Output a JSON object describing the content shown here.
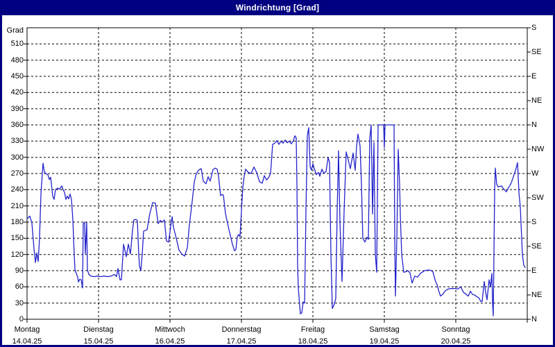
{
  "window": {
    "title": "Windrichtung [Grad]"
  },
  "colors": {
    "titlebar_bg": "#000080",
    "titlebar_text": "#ffffff",
    "frame_border": "#000080",
    "line": "#2222CC",
    "plot_border": "#000000",
    "grid": "#000000",
    "text": "#000000",
    "background": "#ffffff"
  },
  "chart_data": {
    "type": "line",
    "title": "Windrichtung [Grad]",
    "grid": {
      "horizontal_step_deg": 30,
      "vertical_per_day": true,
      "style": "dashed"
    },
    "y_left": {
      "label": "Grad",
      "min": 0,
      "max": 540,
      "ticks": [
        0,
        30,
        60,
        90,
        120,
        150,
        180,
        210,
        240,
        270,
        300,
        330,
        360,
        390,
        420,
        450,
        480,
        510
      ]
    },
    "y_right": {
      "ticks": [
        {
          "deg": 0,
          "label": "N"
        },
        {
          "deg": 45,
          "label": "NE"
        },
        {
          "deg": 90,
          "label": "E"
        },
        {
          "deg": 135,
          "label": "SE"
        },
        {
          "deg": 180,
          "label": "S"
        },
        {
          "deg": 225,
          "label": "SW"
        },
        {
          "deg": 270,
          "label": "W"
        },
        {
          "deg": 315,
          "label": "NW"
        },
        {
          "deg": 360,
          "label": "N"
        },
        {
          "deg": 405,
          "label": "NE"
        },
        {
          "deg": 450,
          "label": "E"
        },
        {
          "deg": 495,
          "label": "SE"
        },
        {
          "deg": 540,
          "label": "S"
        }
      ]
    },
    "x_axis": {
      "unit": "days_since_monday_00h",
      "min": 0,
      "max": 7,
      "days": [
        {
          "name": "Montag",
          "date": "14.04.25"
        },
        {
          "name": "Dienstag",
          "date": "15.04.25"
        },
        {
          "name": "Mittwoch",
          "date": "16.04.25"
        },
        {
          "name": "Donnerstag",
          "date": "17.04.25"
        },
        {
          "name": "Freitag",
          "date": "18.04.25"
        },
        {
          "name": "Samstag",
          "date": "19.04.25"
        },
        {
          "name": "Sonntag",
          "date": "20.04.25"
        }
      ]
    },
    "series": [
      {
        "name": "Windrichtung",
        "unit": "Grad",
        "points": [
          [
            0,
            186
          ],
          [
            0.039,
            191
          ],
          [
            0.068,
            178
          ],
          [
            0.097,
            131
          ],
          [
            0.117,
            105
          ],
          [
            0.136,
            123
          ],
          [
            0.155,
            107
          ],
          [
            0.175,
            150
          ],
          [
            0.194,
            232
          ],
          [
            0.223,
            289
          ],
          [
            0.243,
            273
          ],
          [
            0.272,
            269
          ],
          [
            0.291,
            268
          ],
          [
            0.311,
            259
          ],
          [
            0.33,
            263
          ],
          [
            0.359,
            228
          ],
          [
            0.379,
            222
          ],
          [
            0.398,
            240
          ],
          [
            0.427,
            243
          ],
          [
            0.456,
            241
          ],
          [
            0.485,
            247
          ],
          [
            0.505,
            240
          ],
          [
            0.524,
            235
          ],
          [
            0.544,
            222
          ],
          [
            0.563,
            228
          ],
          [
            0.583,
            223
          ],
          [
            0.602,
            232
          ],
          [
            0.621,
            222
          ],
          [
            0.641,
            185
          ],
          [
            0.65,
            150
          ],
          [
            0.67,
            92
          ],
          [
            0.689,
            85
          ],
          [
            0.709,
            78
          ],
          [
            0.718,
            69
          ],
          [
            0.738,
            74
          ],
          [
            0.757,
            73
          ],
          [
            0.777,
            58
          ],
          [
            0.786,
            177
          ],
          [
            0.806,
            180
          ],
          [
            0.816,
            121
          ],
          [
            0.835,
            179
          ],
          [
            0.845,
            92
          ],
          [
            0.864,
            83
          ],
          [
            0.893,
            80
          ],
          [
            0.932,
            79
          ],
          [
            0.981,
            80
          ],
          [
            1.029,
            79
          ],
          [
            1.078,
            80
          ],
          [
            1.126,
            79
          ],
          [
            1.175,
            80
          ],
          [
            1.223,
            83
          ],
          [
            1.252,
            79
          ],
          [
            1.272,
            94
          ],
          [
            1.301,
            73
          ],
          [
            1.32,
            73
          ],
          [
            1.35,
            139
          ],
          [
            1.388,
            116
          ],
          [
            1.417,
            139
          ],
          [
            1.447,
            121
          ],
          [
            1.476,
            165
          ],
          [
            1.495,
            184
          ],
          [
            1.524,
            185
          ],
          [
            1.544,
            183
          ],
          [
            1.563,
            120
          ],
          [
            1.573,
            99
          ],
          [
            1.592,
            90
          ],
          [
            1.612,
            120
          ],
          [
            1.631,
            163
          ],
          [
            1.66,
            165
          ],
          [
            1.68,
            166
          ],
          [
            1.718,
            196
          ],
          [
            1.757,
            216
          ],
          [
            1.796,
            215
          ],
          [
            1.835,
            177
          ],
          [
            1.864,
            183
          ],
          [
            1.893,
            180
          ],
          [
            1.922,
            184
          ],
          [
            1.951,
            145
          ],
          [
            1.981,
            143
          ],
          [
            2.029,
            190
          ],
          [
            2.049,
            171
          ],
          [
            2.097,
            145
          ],
          [
            2.126,
            128
          ],
          [
            2.165,
            121
          ],
          [
            2.204,
            117
          ],
          [
            2.243,
            132
          ],
          [
            2.272,
            175
          ],
          [
            2.311,
            218
          ],
          [
            2.34,
            254
          ],
          [
            2.369,
            270
          ],
          [
            2.408,
            277
          ],
          [
            2.437,
            279
          ],
          [
            2.466,
            256
          ],
          [
            2.505,
            251
          ],
          [
            2.534,
            264
          ],
          [
            2.563,
            256
          ],
          [
            2.602,
            277
          ],
          [
            2.631,
            280
          ],
          [
            2.66,
            278
          ],
          [
            2.68,
            265
          ],
          [
            2.709,
            229
          ],
          [
            2.728,
            231
          ],
          [
            2.748,
            230
          ],
          [
            2.777,
            196
          ],
          [
            2.825,
            166
          ],
          [
            2.874,
            139
          ],
          [
            2.903,
            127
          ],
          [
            2.922,
            129
          ],
          [
            2.942,
            153
          ],
          [
            2.961,
            157
          ],
          [
            2.981,
            153
          ],
          [
            3,
            200
          ],
          [
            3.019,
            244
          ],
          [
            3.039,
            265
          ],
          [
            3.058,
            278
          ],
          [
            3.097,
            272
          ],
          [
            3.136,
            270
          ],
          [
            3.175,
            282
          ],
          [
            3.214,
            272
          ],
          [
            3.252,
            255
          ],
          [
            3.291,
            252
          ],
          [
            3.32,
            266
          ],
          [
            3.35,
            258
          ],
          [
            3.379,
            262
          ],
          [
            3.408,
            270
          ],
          [
            3.437,
            324
          ],
          [
            3.466,
            326
          ],
          [
            3.495,
            331
          ],
          [
            3.524,
            324
          ],
          [
            3.553,
            330
          ],
          [
            3.583,
            326
          ],
          [
            3.612,
            332
          ],
          [
            3.641,
            327
          ],
          [
            3.67,
            330
          ],
          [
            3.699,
            325
          ],
          [
            3.728,
            331
          ],
          [
            3.748,
            340
          ],
          [
            3.767,
            336
          ],
          [
            3.777,
            250
          ],
          [
            3.786,
            100
          ],
          [
            3.796,
            58
          ],
          [
            3.816,
            25
          ],
          [
            3.825,
            10
          ],
          [
            3.845,
            12
          ],
          [
            3.864,
            32
          ],
          [
            3.884,
            30
          ],
          [
            3.903,
            200
          ],
          [
            3.922,
            340
          ],
          [
            3.942,
            355
          ],
          [
            3.961,
            283
          ],
          [
            3.981,
            276
          ],
          [
            4,
            288
          ],
          [
            4.019,
            279
          ],
          [
            4.049,
            268
          ],
          [
            4.078,
            272
          ],
          [
            4.097,
            265
          ],
          [
            4.126,
            278
          ],
          [
            4.155,
            270
          ],
          [
            4.184,
            274
          ],
          [
            4.214,
            300
          ],
          [
            4.233,
            290
          ],
          [
            4.252,
            120
          ],
          [
            4.272,
            20
          ],
          [
            4.291,
            25
          ],
          [
            4.32,
            38
          ],
          [
            4.34,
            200
          ],
          [
            4.359,
            312
          ],
          [
            4.379,
            180
          ],
          [
            4.408,
            70
          ],
          [
            4.437,
            200
          ],
          [
            4.466,
            310
          ],
          [
            4.495,
            295
          ],
          [
            4.524,
            279
          ],
          [
            4.563,
            308
          ],
          [
            4.592,
            276
          ],
          [
            4.612,
            320
          ],
          [
            4.631,
            343
          ],
          [
            4.66,
            321
          ],
          [
            4.68,
            250
          ],
          [
            4.699,
            150
          ],
          [
            4.728,
            143
          ],
          [
            4.757,
            152
          ],
          [
            4.777,
            148
          ],
          [
            4.796,
            335
          ],
          [
            4.816,
            360
          ],
          [
            4.825,
            280
          ],
          [
            4.835,
            195
          ],
          [
            4.854,
            327
          ],
          [
            4.874,
            120
          ],
          [
            4.893,
            87
          ],
          [
            4.913,
            360
          ],
          [
            4.942,
            360
          ],
          [
            4.971,
            360
          ],
          [
            4.99,
            360
          ],
          [
            5,
            318
          ],
          [
            5.01,
            360
          ],
          [
            5.058,
            360
          ],
          [
            5.107,
            360
          ],
          [
            5.136,
            360
          ],
          [
            5.146,
            150
          ],
          [
            5.155,
            43
          ],
          [
            5.175,
            150
          ],
          [
            5.194,
            315
          ],
          [
            5.214,
            250
          ],
          [
            5.223,
            195
          ],
          [
            5.243,
            120
          ],
          [
            5.272,
            87
          ],
          [
            5.301,
            88
          ],
          [
            5.33,
            90
          ],
          [
            5.359,
            86
          ],
          [
            5.388,
            67
          ],
          [
            5.427,
            80
          ],
          [
            5.466,
            78
          ],
          [
            5.505,
            85
          ],
          [
            5.563,
            90
          ],
          [
            5.612,
            91
          ],
          [
            5.641,
            91
          ],
          [
            5.68,
            88
          ],
          [
            5.709,
            73
          ],
          [
            5.738,
            64
          ],
          [
            5.767,
            50
          ],
          [
            5.786,
            43
          ],
          [
            5.816,
            46
          ],
          [
            5.854,
            53
          ],
          [
            5.893,
            56
          ],
          [
            5.932,
            57
          ],
          [
            5.981,
            57
          ],
          [
            6.029,
            56
          ],
          [
            6.068,
            60
          ],
          [
            6.107,
            50
          ],
          [
            6.146,
            46
          ],
          [
            6.175,
            43
          ],
          [
            6.204,
            52
          ],
          [
            6.233,
            46
          ],
          [
            6.262,
            45
          ],
          [
            6.291,
            42
          ],
          [
            6.32,
            40
          ],
          [
            6.35,
            33
          ],
          [
            6.369,
            33
          ],
          [
            6.398,
            70
          ],
          [
            6.417,
            50
          ],
          [
            6.437,
            36
          ],
          [
            6.466,
            73
          ],
          [
            6.485,
            60
          ],
          [
            6.505,
            85
          ],
          [
            6.515,
            30
          ],
          [
            6.524,
            6
          ],
          [
            6.544,
            240
          ],
          [
            6.553,
            280
          ],
          [
            6.573,
            250
          ],
          [
            6.592,
            245
          ],
          [
            6.612,
            246
          ],
          [
            6.641,
            247
          ],
          [
            6.66,
            243
          ],
          [
            6.68,
            240
          ],
          [
            6.709,
            236
          ],
          [
            6.738,
            244
          ],
          [
            6.767,
            250
          ],
          [
            6.796,
            260
          ],
          [
            6.825,
            272
          ],
          [
            6.845,
            280
          ],
          [
            6.864,
            290
          ],
          [
            6.884,
            233
          ],
          [
            6.903,
            208
          ],
          [
            6.922,
            150
          ],
          [
            6.932,
            120
          ],
          [
            6.951,
            100
          ],
          [
            6.971,
            96
          ]
        ]
      }
    ]
  }
}
